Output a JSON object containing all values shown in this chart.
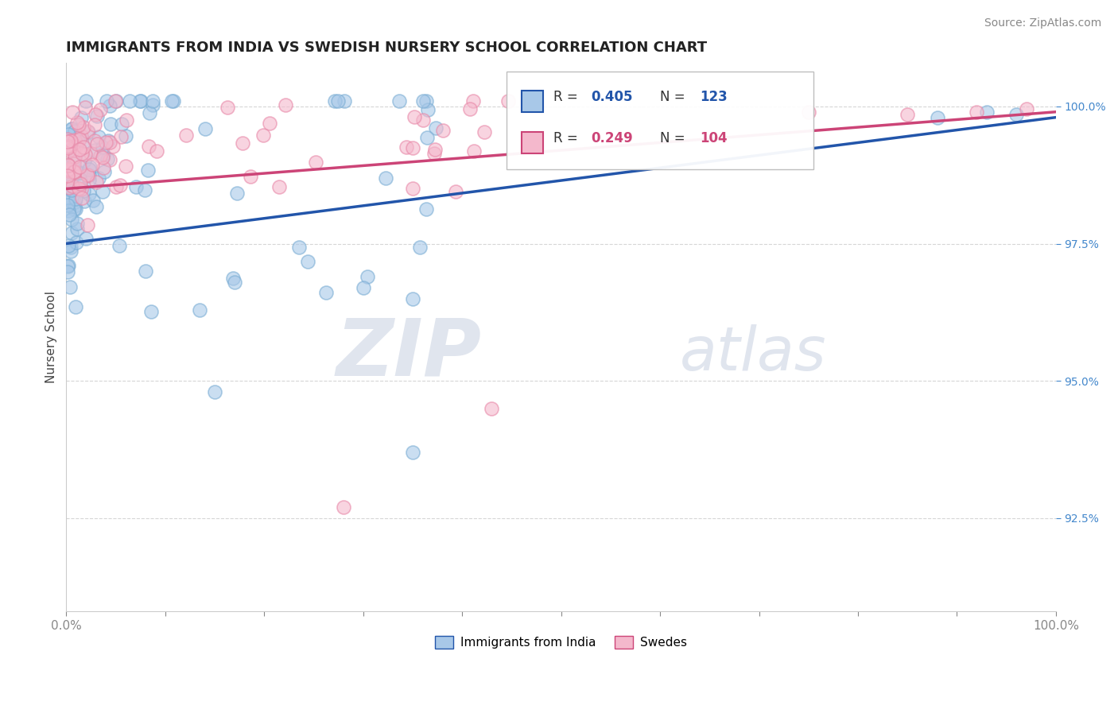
{
  "title": "IMMIGRANTS FROM INDIA VS SWEDISH NURSERY SCHOOL CORRELATION CHART",
  "source": "Source: ZipAtlas.com",
  "ylabel": "Nursery School",
  "legend_blue_label": "Immigrants from India",
  "legend_pink_label": "Swedes",
  "R_blue": 0.405,
  "N_blue": 123,
  "R_pink": 0.249,
  "N_pink": 104,
  "blue_color": "#a8c8e8",
  "blue_edge_color": "#7aadd4",
  "pink_color": "#f4b8cc",
  "pink_edge_color": "#e888a8",
  "blue_line_color": "#2255aa",
  "pink_line_color": "#cc4477",
  "ytick_labels": [
    "92.5%",
    "95.0%",
    "97.5%",
    "100.0%"
  ],
  "ytick_values": [
    0.925,
    0.95,
    0.975,
    1.0
  ],
  "xmin": 0.0,
  "xmax": 1.0,
  "ymin": 0.908,
  "ymax": 1.008,
  "watermark_zip": "ZIP",
  "watermark_atlas": "atlas",
  "watermark_color": "#e0e5ee",
  "background_color": "#ffffff",
  "blue_line_start_x": 0.0,
  "blue_line_start_y": 0.975,
  "blue_line_end_x": 1.0,
  "blue_line_end_y": 0.998,
  "pink_line_start_x": 0.0,
  "pink_line_start_y": 0.985,
  "pink_line_end_x": 1.0,
  "pink_line_end_y": 0.999
}
